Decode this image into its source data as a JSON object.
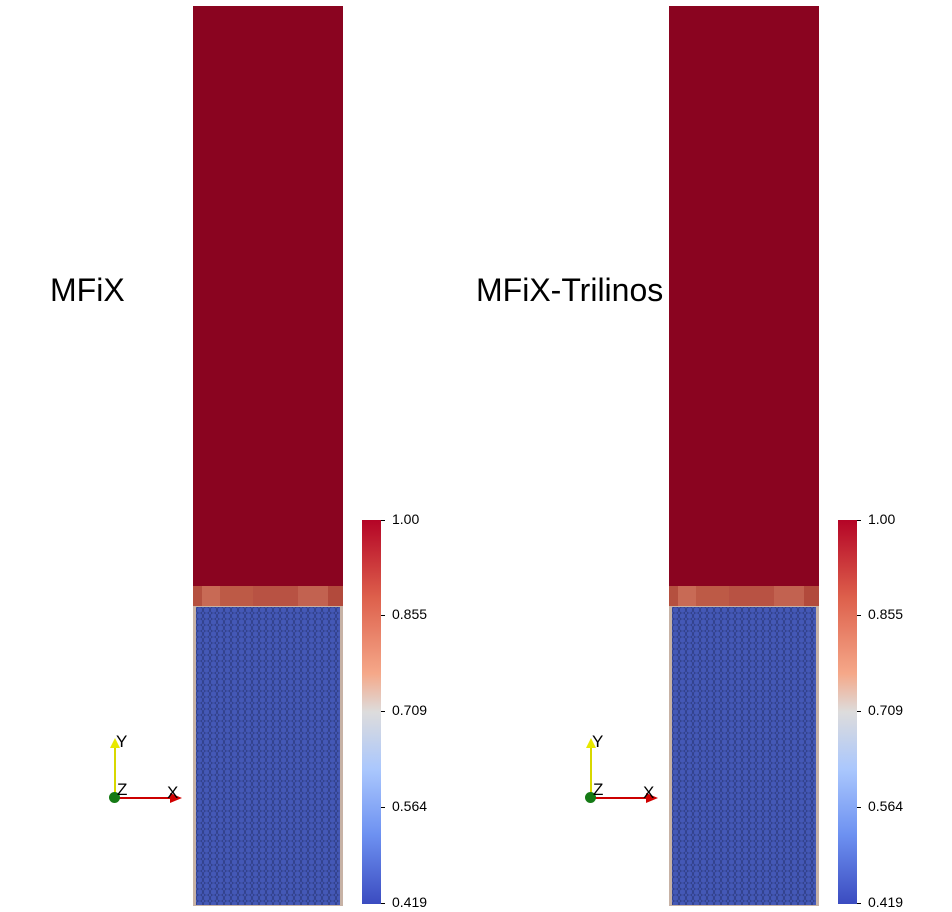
{
  "panels": [
    {
      "label": "MFiX",
      "colorbar_ticks": [
        "1.00",
        "0.855",
        "0.709",
        "0.564",
        "0.419"
      ],
      "axes": {
        "x": "X",
        "y": "Y",
        "z": "Z"
      }
    },
    {
      "label": "MFiX-Trilinos",
      "colorbar_ticks": [
        "1.00",
        "0.855",
        "0.709",
        "0.564",
        "0.419"
      ],
      "axes": {
        "x": "X",
        "y": "Y",
        "z": "Z"
      }
    }
  ],
  "colors": {
    "freeboard": "#8a0420",
    "interface_band": "#bd5a46",
    "particles": "#3a4aa0",
    "colormap_max": "#b40426",
    "colormap_mid": "#dddcdc",
    "colormap_min": "#3b4cc0",
    "axis_x": "#cc0000",
    "axis_y": "#d8d800",
    "axis_origin": "#157a15"
  }
}
